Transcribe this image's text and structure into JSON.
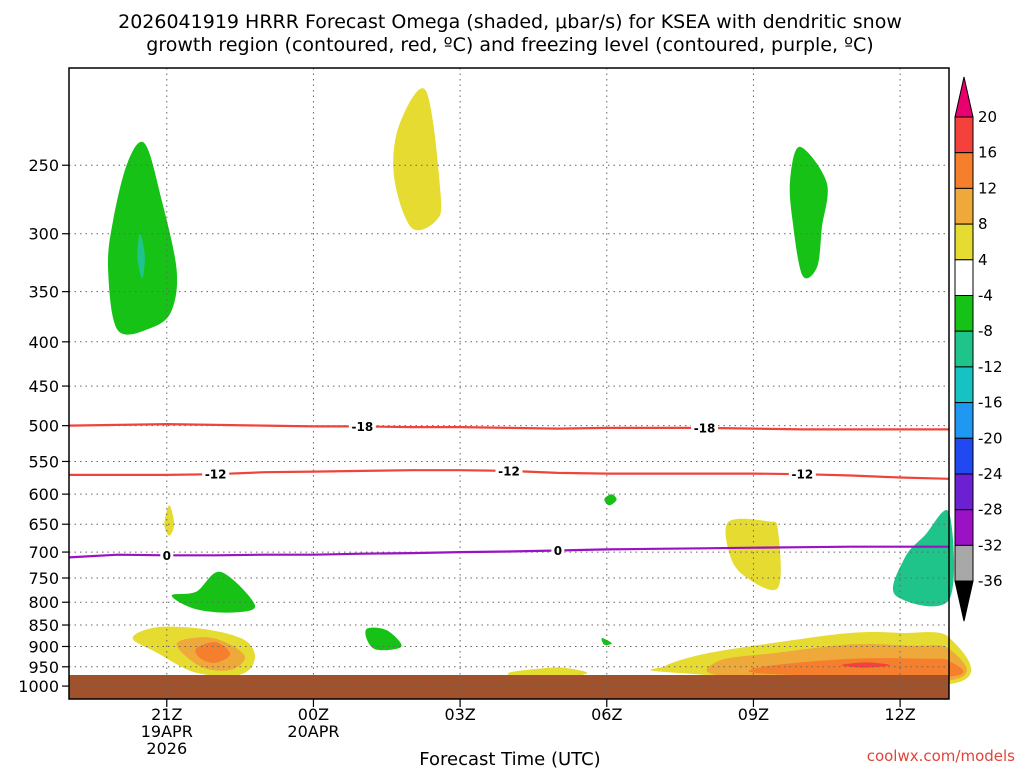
{
  "chart_data": {
    "type": "heatmap",
    "title_line1": "2026041919 HRRR Forecast Omega (shaded, μbar/s) for KSEA with dendritic snow",
    "title_line2": "growth region (contoured, red, ºC) and freezing level (contoured, purple, ºC)",
    "xlabel": "Forecast Time (UTC)",
    "credit": "coolwx.com/models",
    "x_ticks": [
      {
        "hour": 2,
        "label": "21Z",
        "sub1": "19APR",
        "sub2": "2026"
      },
      {
        "hour": 5,
        "label": "00Z",
        "sub1": "20APR",
        "sub2": ""
      },
      {
        "hour": 8,
        "label": "03Z",
        "sub1": "",
        "sub2": ""
      },
      {
        "hour": 11,
        "label": "06Z",
        "sub1": "",
        "sub2": ""
      },
      {
        "hour": 14,
        "label": "09Z",
        "sub1": "",
        "sub2": ""
      },
      {
        "hour": 17,
        "label": "12Z",
        "sub1": "",
        "sub2": ""
      }
    ],
    "x_range_hours": [
      0,
      18
    ],
    "y_axis": {
      "unit": "hPa",
      "range": [
        1035,
        193
      ],
      "ticks": [
        "250",
        "300",
        "350",
        "400",
        "450",
        "500",
        "550",
        "600",
        "650",
        "700",
        "750",
        "800",
        "850",
        "900",
        "950",
        "1000"
      ]
    },
    "colorbar": {
      "labels": [
        "20",
        "16",
        "12",
        "8",
        "4",
        "-4",
        "-8",
        "-12",
        "-16",
        "-20",
        "-24",
        "-28",
        "-32",
        "-36"
      ],
      "colors": [
        "#e8006e",
        "#f5413c",
        "#f57f2d",
        "#efa83a",
        "#e6db31",
        "#ffffff",
        "#16c216",
        "#1ec489",
        "#17c2c2",
        "#1f98f2",
        "#2049f2",
        "#6b20d2",
        "#9a12c4",
        "#a8a8a8",
        "#000000"
      ]
    },
    "isotherms": [
      {
        "name": "dendritic-top",
        "value": -18,
        "label": "-18",
        "color": "#f0443a",
        "x": [
          0,
          1,
          2,
          3,
          4,
          5,
          6,
          7,
          8,
          9,
          10,
          11,
          12,
          13,
          14,
          15,
          16,
          17,
          18
        ],
        "p": [
          500,
          499,
          498,
          499,
          500,
          501,
          501,
          502,
          502,
          503,
          504,
          503,
          503,
          503,
          504,
          505,
          505,
          505,
          505
        ],
        "label_hours": [
          6,
          13
        ]
      },
      {
        "name": "dendritic-bottom",
        "value": -12,
        "label": "-12",
        "color": "#f0443a",
        "x": [
          0,
          1,
          2,
          3,
          4,
          5,
          6,
          7,
          8,
          9,
          10,
          11,
          12,
          13,
          14,
          15,
          16,
          17,
          18
        ],
        "p": [
          570,
          570,
          570,
          569,
          566,
          565,
          564,
          563,
          563,
          564,
          567,
          568,
          568,
          568,
          568,
          569,
          571,
          574,
          576
        ],
        "label_hours": [
          3,
          9,
          15
        ]
      },
      {
        "name": "freezing-level",
        "value": 0,
        "label": "0",
        "color": "#9a12c4",
        "x": [
          0,
          1,
          2,
          3,
          4,
          5,
          6,
          7,
          8,
          9,
          10,
          11,
          12,
          13,
          14,
          15,
          16,
          17,
          18
        ],
        "p": [
          710,
          705,
          706,
          706,
          705,
          705,
          703,
          702,
          700,
          699,
          697,
          695,
          694,
          693,
          692,
          691,
          690,
          690,
          690
        ],
        "label_hours": [
          2,
          10
        ]
      }
    ],
    "omega_regions": [
      {
        "label": "upper-updraft-west",
        "value": -6,
        "shape": [
          [
            1,
            388
          ],
          [
            0.8,
            330
          ],
          [
            0.9,
            290
          ],
          [
            1.2,
            248
          ],
          [
            1.55,
            236
          ],
          [
            1.9,
            275
          ],
          [
            2.2,
            330
          ],
          [
            2.1,
            368
          ],
          [
            1.7,
            385
          ]
        ]
      },
      {
        "label": "upper-updraft-west-core",
        "value": -10,
        "shape": [
          [
            1.45,
            300
          ],
          [
            1.55,
            318
          ],
          [
            1.5,
            338
          ],
          [
            1.4,
            320
          ]
        ]
      },
      {
        "label": "upper-subsidence-0130z",
        "value": 6,
        "shape": [
          [
            7,
            295
          ],
          [
            6.65,
            258
          ],
          [
            6.75,
            225
          ],
          [
            7.3,
            205
          ],
          [
            7.6,
            270
          ],
          [
            7.5,
            290
          ]
        ]
      },
      {
        "label": "upper-updraft-0730z",
        "value": -6,
        "shape": [
          [
            15,
            335
          ],
          [
            14.8,
            290
          ],
          [
            14.75,
            260
          ],
          [
            14.95,
            238
          ],
          [
            15.5,
            262
          ],
          [
            15.4,
            295
          ],
          [
            15.3,
            328
          ]
        ]
      },
      {
        "label": "small-subsidence-2030z",
        "value": 6,
        "shape": [
          [
            1.95,
            650
          ],
          [
            2.05,
            618
          ],
          [
            2.15,
            650
          ],
          [
            2.05,
            670
          ]
        ]
      },
      {
        "label": "small-updraft-0530z",
        "value": -6,
        "shape": [
          [
            11.1,
            600
          ],
          [
            11.2,
            609
          ],
          [
            11.05,
            618
          ],
          [
            10.95,
            608
          ]
        ]
      },
      {
        "label": "updraft-2130z",
        "value": -6,
        "shape": [
          [
            2.1,
            786
          ],
          [
            2.6,
            778
          ],
          [
            3.1,
            738
          ],
          [
            3.8,
            805
          ],
          [
            3.4,
            822
          ],
          [
            2.6,
            815
          ]
        ]
      },
      {
        "label": "subsidence-0830z",
        "value": 6,
        "shape": [
          [
            13.5,
            645
          ],
          [
            14.3,
            645
          ],
          [
            14.5,
            660
          ],
          [
            14.5,
            770
          ],
          [
            13.8,
            745
          ],
          [
            13.5,
            700
          ]
        ]
      },
      {
        "label": "updraft-1230z",
        "value": -8,
        "shape": [
          [
            16.9,
            785
          ],
          [
            17.1,
            710
          ],
          [
            17.5,
            670
          ],
          [
            18,
            630
          ],
          [
            18,
            795
          ]
        ]
      },
      {
        "label": "updraft-0030z",
        "value": -6,
        "shape": [
          [
            6.1,
            858
          ],
          [
            6.5,
            862
          ],
          [
            6.8,
            900
          ],
          [
            6.3,
            908
          ],
          [
            6.1,
            885
          ]
        ]
      },
      {
        "label": "tiny-updraft-0600z",
        "value": -6,
        "shape": [
          [
            10.9,
            880
          ],
          [
            11.1,
            892
          ],
          [
            10.95,
            896
          ]
        ]
      },
      {
        "label": "llvl-subsidence-2100z",
        "value": 6,
        "shape": [
          [
            1.3,
            880
          ],
          [
            1.8,
            855
          ],
          [
            2.8,
            860
          ],
          [
            3.6,
            885
          ],
          [
            3.8,
            930
          ],
          [
            3.5,
            970
          ],
          [
            2.6,
            965
          ],
          [
            1.8,
            915
          ]
        ]
      },
      {
        "label": "llvl-subsidence-2100z-mid",
        "value": 10,
        "shape": [
          [
            2.2,
            895
          ],
          [
            2.7,
            878
          ],
          [
            3.2,
            890
          ],
          [
            3.6,
            925
          ],
          [
            3.3,
            958
          ],
          [
            2.7,
            950
          ]
        ]
      },
      {
        "label": "llvl-subsidence-2100z-core",
        "value": 13,
        "shape": [
          [
            2.6,
            905
          ],
          [
            3.0,
            890
          ],
          [
            3.3,
            918
          ],
          [
            3.0,
            940
          ],
          [
            2.7,
            930
          ]
        ]
      },
      {
        "label": "llvl-subsidence-0400z",
        "value": 6,
        "shape": [
          [
            9,
            965
          ],
          [
            9.6,
            955
          ],
          [
            10.1,
            952
          ],
          [
            10.6,
            965
          ],
          [
            10.2,
            975
          ],
          [
            9.2,
            975
          ]
        ]
      },
      {
        "label": "llvl-subsidence-0900z",
        "value": 6,
        "shape": [
          [
            12.2,
            948
          ],
          [
            13,
            918
          ],
          [
            14.5,
            890
          ],
          [
            16,
            868
          ],
          [
            17,
            868
          ],
          [
            18,
            878
          ],
          [
            18,
            995
          ],
          [
            12.4,
            965
          ]
        ]
      },
      {
        "label": "llvl-subsidence-0900z-mid",
        "value": 10,
        "shape": [
          [
            13.3,
            935
          ],
          [
            14.5,
            915
          ],
          [
            16,
            895
          ],
          [
            17.2,
            898
          ],
          [
            18,
            905
          ],
          [
            18,
            985
          ],
          [
            13.5,
            975
          ]
        ]
      },
      {
        "label": "llvl-subsidence-0900z-core",
        "value": 13,
        "shape": [
          [
            14.2,
            950
          ],
          [
            16,
            930
          ],
          [
            17.5,
            930
          ],
          [
            18,
            935
          ],
          [
            18,
            975
          ],
          [
            14.3,
            968
          ]
        ]
      },
      {
        "label": "llvl-subsidence-1100z-max",
        "value": 17,
        "shape": [
          [
            15.8,
            946
          ],
          [
            16.3,
            939
          ],
          [
            16.8,
            946
          ],
          [
            16.3,
            952
          ]
        ]
      }
    ]
  }
}
